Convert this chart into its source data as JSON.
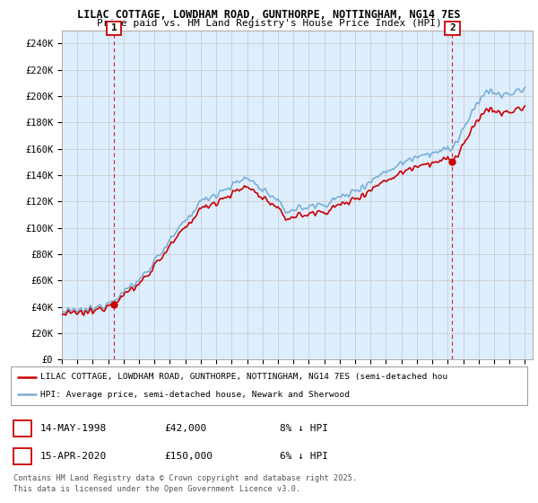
{
  "title_line1": "LILAC COTTAGE, LOWDHAM ROAD, GUNTHORPE, NOTTINGHAM, NG14 7ES",
  "title_line2": "Price paid vs. HM Land Registry's House Price Index (HPI)",
  "ylabel_ticks": [
    "£0",
    "£20K",
    "£40K",
    "£60K",
    "£80K",
    "£100K",
    "£120K",
    "£140K",
    "£160K",
    "£180K",
    "£200K",
    "£220K",
    "£240K"
  ],
  "ytick_values": [
    0,
    20000,
    40000,
    60000,
    80000,
    100000,
    120000,
    140000,
    160000,
    180000,
    200000,
    220000,
    240000
  ],
  "ylim": [
    0,
    250000
  ],
  "xtick_years": [
    1995,
    1996,
    1997,
    1998,
    1999,
    2000,
    2001,
    2002,
    2003,
    2004,
    2005,
    2006,
    2007,
    2008,
    2009,
    2010,
    2011,
    2012,
    2013,
    2014,
    2015,
    2016,
    2017,
    2018,
    2019,
    2020,
    2021,
    2022,
    2023,
    2024,
    2025
  ],
  "property_color": "#cc0000",
  "hpi_color": "#7bafd4",
  "chart_bg_color": "#ddeeff",
  "transaction1_price": 42000,
  "transaction1_x": 1998.37,
  "transaction2_price": 150000,
  "transaction2_x": 2020.29,
  "legend_property": "LILAC COTTAGE, LOWDHAM ROAD, GUNTHORPE, NOTTINGHAM, NG14 7ES (semi-detached hou",
  "legend_hpi": "HPI: Average price, semi-detached house, Newark and Sherwood",
  "footer": "Contains HM Land Registry data © Crown copyright and database right 2025.\nThis data is licensed under the Open Government Licence v3.0.",
  "info1_num": "1",
  "info1_date": "14-MAY-1998",
  "info1_price": "£42,000",
  "info1_hpi": "8% ↓ HPI",
  "info2_num": "2",
  "info2_date": "15-APR-2020",
  "info2_price": "£150,000",
  "info2_hpi": "6% ↓ HPI",
  "background_color": "#ffffff",
  "grid_color": "#cccccc"
}
